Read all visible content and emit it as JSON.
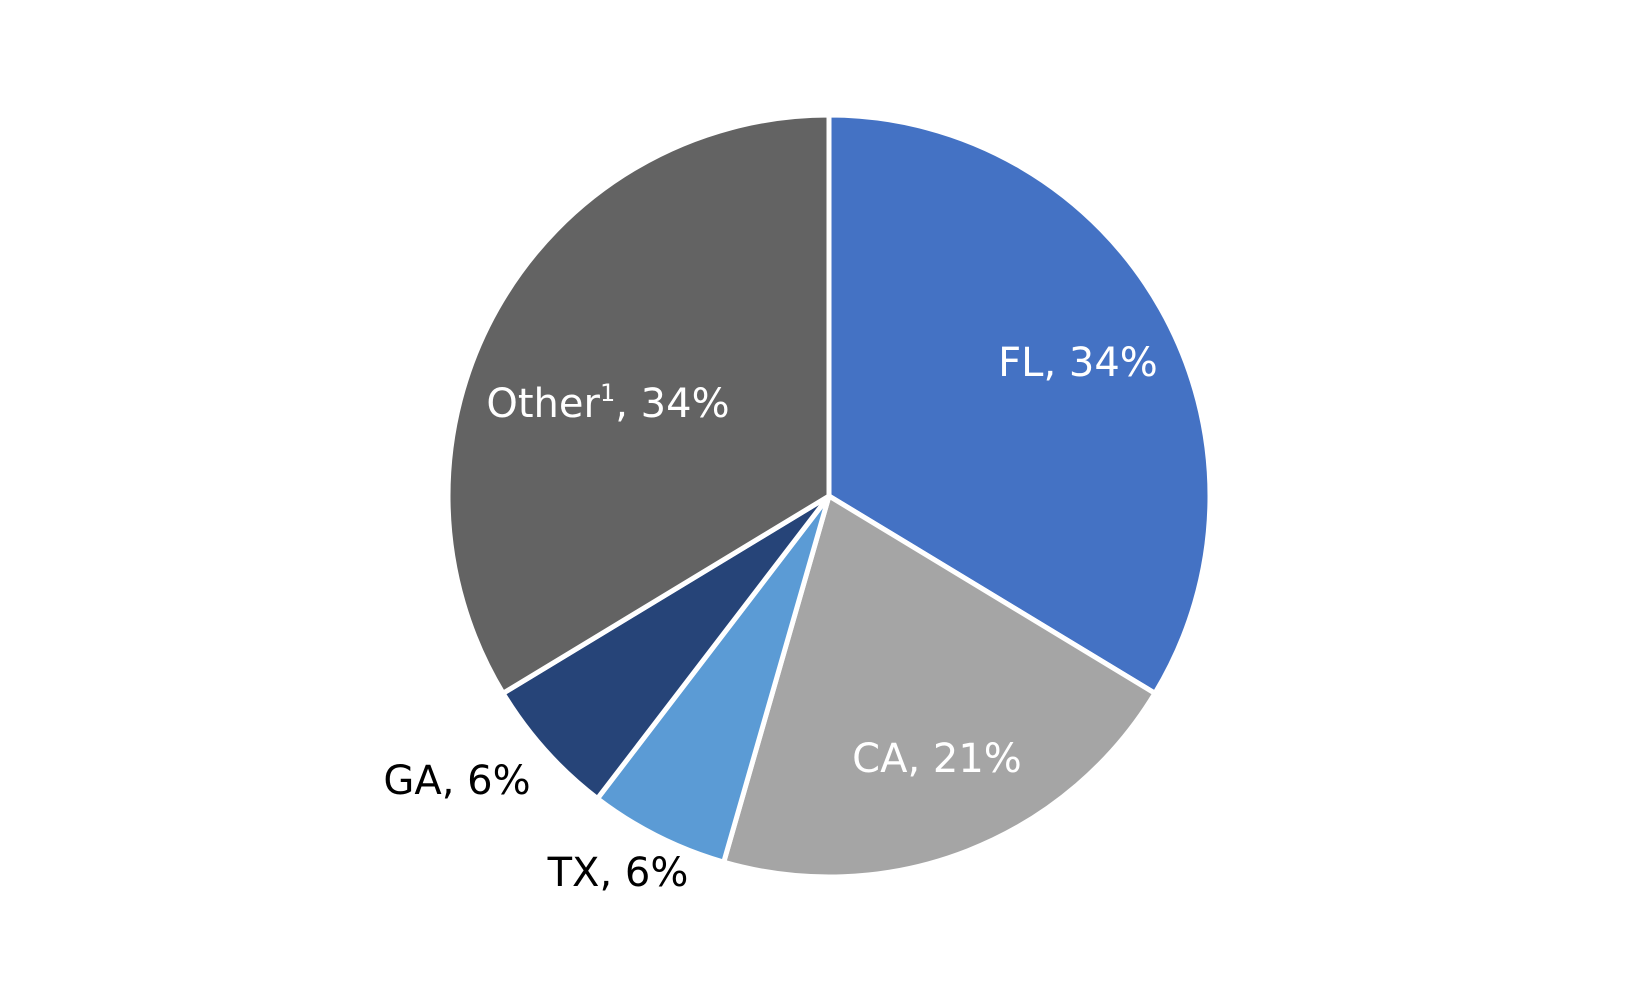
{
  "chart_data": {
    "type": "pie",
    "title": "",
    "start_angle_deg": 0,
    "direction": "clockwise",
    "slices": [
      {
        "label": "FL",
        "sup": "",
        "value": 34,
        "display": ", 34%",
        "color": "#4472C4",
        "label_position": "inside"
      },
      {
        "label": "CA",
        "sup": "",
        "value": 21,
        "display": ", 21%",
        "color": "#A5A5A5",
        "label_position": "inside"
      },
      {
        "label": "TX",
        "sup": "",
        "value": 6,
        "display": ", 6%",
        "color": "#5B9BD5",
        "label_position": "outside"
      },
      {
        "label": "GA",
        "sup": "",
        "value": 6,
        "display": ", 6%",
        "color": "#264478",
        "label_position": "outside"
      },
      {
        "label": "Other",
        "sup": "1",
        "value": 34,
        "display": ", 34%",
        "color": "#636363",
        "label_position": "inside"
      }
    ]
  }
}
